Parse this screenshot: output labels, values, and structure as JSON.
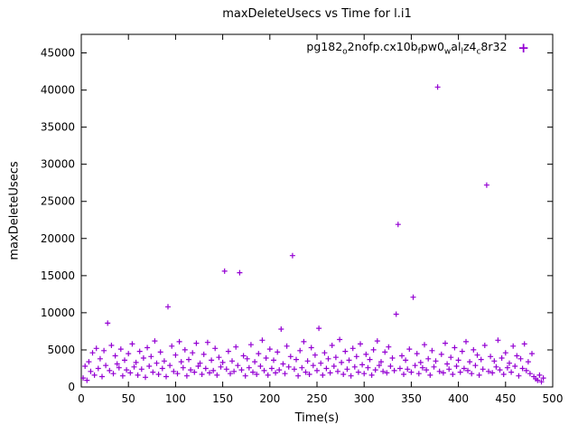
{
  "title": "maxDeleteUsecs vs Time for l.i1",
  "chart": {
    "xlabel": "Time(s)",
    "ylabel": "maxDeleteUsecs",
    "marker_color": "#9400D3",
    "marker_glyph": "+",
    "legend_segments": [
      {
        "t": "pg182"
      },
      {
        "t": "o",
        "sub": true
      },
      {
        "t": "2nofp.cx10b"
      },
      {
        "t": "f",
        "sub": true
      },
      {
        "t": "pw0"
      },
      {
        "t": "w",
        "sub": true
      },
      {
        "t": "al"
      },
      {
        "t": "l",
        "sub": true
      },
      {
        "t": "z4"
      },
      {
        "t": "c",
        "sub": true
      },
      {
        "t": "8r32"
      }
    ]
  },
  "chart_data": {
    "type": "scatter",
    "title": "maxDeleteUsecs vs Time for l.i1",
    "xlabel": "Time(s)",
    "ylabel": "maxDeleteUsecs",
    "xlim": [
      0,
      500
    ],
    "ylim": [
      0,
      47500
    ],
    "xticks": [
      0,
      50,
      100,
      150,
      200,
      250,
      300,
      350,
      400,
      450,
      500
    ],
    "yticks": [
      0,
      5000,
      10000,
      15000,
      20000,
      25000,
      30000,
      35000,
      40000,
      45000
    ],
    "grid": false,
    "legend_position": "top-right-inside",
    "series": [
      {
        "name": "pg182_o2nofp.cx10b_fpw0_wal_lz4_c8r32",
        "points": [
          [
            2,
            1200
          ],
          [
            4,
            2800
          ],
          [
            6,
            900
          ],
          [
            8,
            3400
          ],
          [
            10,
            2100
          ],
          [
            12,
            4600
          ],
          [
            14,
            1600
          ],
          [
            16,
            5200
          ],
          [
            18,
            2500
          ],
          [
            20,
            3800
          ],
          [
            22,
            1400
          ],
          [
            24,
            4900
          ],
          [
            26,
            2900
          ],
          [
            28,
            8600
          ],
          [
            30,
            2200
          ],
          [
            32,
            5600
          ],
          [
            34,
            1800
          ],
          [
            36,
            4200
          ],
          [
            38,
            3100
          ],
          [
            40,
            2600
          ],
          [
            42,
            5100
          ],
          [
            44,
            1500
          ],
          [
            46,
            3600
          ],
          [
            48,
            2300
          ],
          [
            50,
            4500
          ],
          [
            52,
            1900
          ],
          [
            54,
            5800
          ],
          [
            56,
            2700
          ],
          [
            58,
            3300
          ],
          [
            60,
            1600
          ],
          [
            62,
            4800
          ],
          [
            64,
            2400
          ],
          [
            66,
            3900
          ],
          [
            68,
            1300
          ],
          [
            70,
            5300
          ],
          [
            72,
            2800
          ],
          [
            74,
            4100
          ],
          [
            76,
            2000
          ],
          [
            78,
            6200
          ],
          [
            80,
            3200
          ],
          [
            82,
            1700
          ],
          [
            84,
            4700
          ],
          [
            86,
            2500
          ],
          [
            88,
            3500
          ],
          [
            90,
            1400
          ],
          [
            92,
            10800
          ],
          [
            94,
            2900
          ],
          [
            96,
            5500
          ],
          [
            98,
            2100
          ],
          [
            100,
            4300
          ],
          [
            102,
            1800
          ],
          [
            104,
            6100
          ],
          [
            106,
            3400
          ],
          [
            108,
            2600
          ],
          [
            110,
            5000
          ],
          [
            112,
            1500
          ],
          [
            114,
            3700
          ],
          [
            116,
            2300
          ],
          [
            118,
            4600
          ],
          [
            120,
            2000
          ],
          [
            122,
            5900
          ],
          [
            124,
            2800
          ],
          [
            126,
            3200
          ],
          [
            128,
            1700
          ],
          [
            130,
            4400
          ],
          [
            132,
            2500
          ],
          [
            134,
            6000
          ],
          [
            136,
            1900
          ],
          [
            138,
            3600
          ],
          [
            140,
            2200
          ],
          [
            142,
            5200
          ],
          [
            144,
            1600
          ],
          [
            146,
            4000
          ],
          [
            148,
            2700
          ],
          [
            150,
            3300
          ],
          [
            152,
            15600
          ],
          [
            154,
            2400
          ],
          [
            156,
            4800
          ],
          [
            158,
            1800
          ],
          [
            160,
            3500
          ],
          [
            162,
            2100
          ],
          [
            164,
            5400
          ],
          [
            166,
            2900
          ],
          [
            168,
            15400
          ],
          [
            170,
            2300
          ],
          [
            172,
            4200
          ],
          [
            174,
            1500
          ],
          [
            176,
            3800
          ],
          [
            178,
            2600
          ],
          [
            180,
            5700
          ],
          [
            182,
            2000
          ],
          [
            184,
            3400
          ],
          [
            186,
            1700
          ],
          [
            188,
            4500
          ],
          [
            190,
            2800
          ],
          [
            192,
            6300
          ],
          [
            194,
            2200
          ],
          [
            196,
            3900
          ],
          [
            198,
            1600
          ],
          [
            200,
            5100
          ],
          [
            202,
            2500
          ],
          [
            204,
            3600
          ],
          [
            206,
            1900
          ],
          [
            208,
            4700
          ],
          [
            210,
            2300
          ],
          [
            212,
            7800
          ],
          [
            214,
            3100
          ],
          [
            216,
            1800
          ],
          [
            218,
            5500
          ],
          [
            220,
            2700
          ],
          [
            222,
            4100
          ],
          [
            224,
            17700
          ],
          [
            226,
            2400
          ],
          [
            228,
            3700
          ],
          [
            230,
            1500
          ],
          [
            232,
            4900
          ],
          [
            234,
            2600
          ],
          [
            236,
            6100
          ],
          [
            238,
            2000
          ],
          [
            240,
            3500
          ],
          [
            242,
            1700
          ],
          [
            244,
            5300
          ],
          [
            246,
            2900
          ],
          [
            248,
            4300
          ],
          [
            250,
            2200
          ],
          [
            252,
            7900
          ],
          [
            254,
            3200
          ],
          [
            256,
            1600
          ],
          [
            258,
            4600
          ],
          [
            260,
            2500
          ],
          [
            262,
            3800
          ],
          [
            264,
            1900
          ],
          [
            266,
            5600
          ],
          [
            268,
            2800
          ],
          [
            270,
            4000
          ],
          [
            272,
            2100
          ],
          [
            274,
            6400
          ],
          [
            276,
            3300
          ],
          [
            278,
            1700
          ],
          [
            280,
            4800
          ],
          [
            282,
            2400
          ],
          [
            284,
            3600
          ],
          [
            286,
            1500
          ],
          [
            288,
            5200
          ],
          [
            290,
            2700
          ],
          [
            292,
            4100
          ],
          [
            294,
            2000
          ],
          [
            296,
            5800
          ],
          [
            298,
            3000
          ],
          [
            300,
            1800
          ],
          [
            302,
            4400
          ],
          [
            304,
            2600
          ],
          [
            306,
            3700
          ],
          [
            308,
            1600
          ],
          [
            310,
            5000
          ],
          [
            312,
            2300
          ],
          [
            314,
            6200
          ],
          [
            316,
            2900
          ],
          [
            318,
            3400
          ],
          [
            320,
            2100
          ],
          [
            322,
            4700
          ],
          [
            324,
            1900
          ],
          [
            326,
            5400
          ],
          [
            328,
            2800
          ],
          [
            330,
            3900
          ],
          [
            332,
            2200
          ],
          [
            334,
            9800
          ],
          [
            336,
            21900
          ],
          [
            338,
            2500
          ],
          [
            340,
            4200
          ],
          [
            342,
            1700
          ],
          [
            344,
            3600
          ],
          [
            346,
            2400
          ],
          [
            348,
            5100
          ],
          [
            350,
            2000
          ],
          [
            352,
            12100
          ],
          [
            354,
            2900
          ],
          [
            356,
            4500
          ],
          [
            358,
            1800
          ],
          [
            360,
            3300
          ],
          [
            362,
            2600
          ],
          [
            364,
            5700
          ],
          [
            366,
            2300
          ],
          [
            368,
            3800
          ],
          [
            370,
            1600
          ],
          [
            372,
            4900
          ],
          [
            374,
            2700
          ],
          [
            376,
            3500
          ],
          [
            378,
            40400
          ],
          [
            380,
            2100
          ],
          [
            382,
            4400
          ],
          [
            384,
            1900
          ],
          [
            386,
            5900
          ],
          [
            388,
            3100
          ],
          [
            390,
            2400
          ],
          [
            392,
            4000
          ],
          [
            394,
            1700
          ],
          [
            396,
            5300
          ],
          [
            398,
            2800
          ],
          [
            400,
            3600
          ],
          [
            402,
            2000
          ],
          [
            404,
            4800
          ],
          [
            406,
            2500
          ],
          [
            408,
            6100
          ],
          [
            410,
            2200
          ],
          [
            412,
            3400
          ],
          [
            414,
            1800
          ],
          [
            416,
            5000
          ],
          [
            418,
            2900
          ],
          [
            420,
            4300
          ],
          [
            422,
            1600
          ],
          [
            424,
            3700
          ],
          [
            426,
            2400
          ],
          [
            428,
            5600
          ],
          [
            430,
            27200
          ],
          [
            432,
            2100
          ],
          [
            434,
            4100
          ],
          [
            436,
            1900
          ],
          [
            438,
            3500
          ],
          [
            440,
            2700
          ],
          [
            442,
            6300
          ],
          [
            444,
            2300
          ],
          [
            446,
            3900
          ],
          [
            448,
            1700
          ],
          [
            450,
            4600
          ],
          [
            452,
            2600
          ],
          [
            454,
            3200
          ],
          [
            456,
            2000
          ],
          [
            458,
            5500
          ],
          [
            460,
            2800
          ],
          [
            462,
            4200
          ],
          [
            464,
            1500
          ],
          [
            466,
            3800
          ],
          [
            468,
            2500
          ],
          [
            470,
            5800
          ],
          [
            472,
            2200
          ],
          [
            474,
            3400
          ],
          [
            476,
            1800
          ],
          [
            478,
            4500
          ],
          [
            480,
            1400
          ],
          [
            482,
            1100
          ],
          [
            484,
            900
          ],
          [
            486,
            1600
          ],
          [
            488,
            700
          ],
          [
            490,
            1200
          ]
        ]
      }
    ]
  }
}
